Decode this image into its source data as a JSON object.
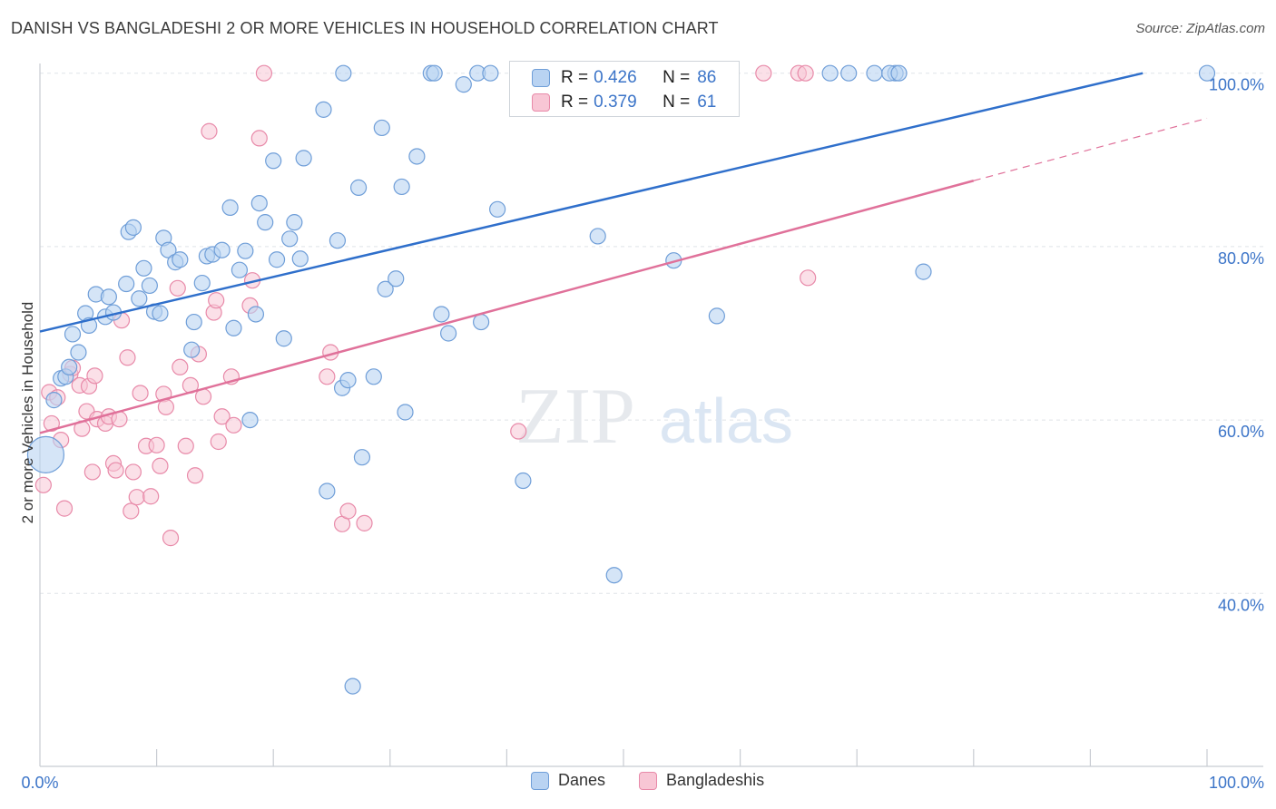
{
  "title": "DANISH VS BANGLADESHI 2 OR MORE VEHICLES IN HOUSEHOLD CORRELATION CHART",
  "source": "Source: ZipAtlas.com",
  "watermark": {
    "zip": "ZIP",
    "atlas": "atlas"
  },
  "legend_box": {
    "rows": [
      {
        "r_label": "R =",
        "r_value": "0.426",
        "n_label": "N =",
        "n_value": "86"
      },
      {
        "r_label": "R =",
        "r_value": "0.379",
        "n_label": "N =",
        "n_value": "61"
      }
    ]
  },
  "legend_bottom": {
    "danes": "Danes",
    "bangladeshis": "Bangladeshis"
  },
  "colors": {
    "danes_fill": "#b9d3f2",
    "danes_stroke": "#6f9ed8",
    "danes_line": "#2f6fcb",
    "bang_fill": "#f8c6d5",
    "bang_stroke": "#e88aa9",
    "bang_line": "#e0719a",
    "grid": "#dfe3e8",
    "tick_label": "#3b74c8"
  },
  "chart_data": {
    "type": "scatter",
    "title": "DANISH VS BANGLADESHI 2 OR MORE VEHICLES IN HOUSEHOLD CORRELATION CHART",
    "xlabel": "",
    "ylabel": "2 or more Vehicles in Household",
    "xlim": [
      0,
      100
    ],
    "ylim": [
      20,
      102
    ],
    "x_tick_labels": [
      "0.0%",
      "100.0%"
    ],
    "y_ticks": [
      40,
      60,
      80,
      100
    ],
    "y_tick_labels": [
      "40.0%",
      "60.0%",
      "80.0%",
      "100.0%"
    ],
    "grid": true,
    "legend_position": "top-center",
    "series": [
      {
        "name": "Danes",
        "r": 0.426,
        "n": 86,
        "trend": {
          "x0": 0,
          "y0": 70.2,
          "x1": 94.5,
          "y1": 100
        },
        "points": [
          [
            0.5,
            56
          ],
          [
            1.2,
            62.3
          ],
          [
            1.8,
            64.8
          ],
          [
            2.2,
            65
          ],
          [
            2.5,
            66.1
          ],
          [
            2.8,
            69.9
          ],
          [
            3.3,
            67.8
          ],
          [
            3.9,
            72.3
          ],
          [
            4.2,
            70.9
          ],
          [
            4.8,
            74.5
          ],
          [
            5.6,
            71.9
          ],
          [
            5.9,
            74.2
          ],
          [
            6.3,
            72.4
          ],
          [
            7.4,
            75.7
          ],
          [
            7.6,
            81.7
          ],
          [
            8.0,
            82.2
          ],
          [
            8.5,
            74
          ],
          [
            8.9,
            77.5
          ],
          [
            9.4,
            75.5
          ],
          [
            9.8,
            72.5
          ],
          [
            10.3,
            72.3
          ],
          [
            10.6,
            81
          ],
          [
            11.0,
            79.6
          ],
          [
            11.6,
            78.2
          ],
          [
            12.0,
            78.5
          ],
          [
            13.0,
            68.1
          ],
          [
            13.2,
            71.3
          ],
          [
            13.9,
            75.8
          ],
          [
            14.3,
            78.9
          ],
          [
            14.8,
            79.1
          ],
          [
            15.6,
            79.6
          ],
          [
            16.3,
            84.5
          ],
          [
            16.6,
            70.6
          ],
          [
            17.1,
            77.3
          ],
          [
            17.6,
            79.5
          ],
          [
            18.0,
            60
          ],
          [
            18.5,
            72.2
          ],
          [
            18.8,
            85
          ],
          [
            19.3,
            82.8
          ],
          [
            20.0,
            89.9
          ],
          [
            20.3,
            78.5
          ],
          [
            20.9,
            69.4
          ],
          [
            21.4,
            80.9
          ],
          [
            21.8,
            82.8
          ],
          [
            22.3,
            78.6
          ],
          [
            22.6,
            90.2
          ],
          [
            24.3,
            95.8
          ],
          [
            24.6,
            51.8
          ],
          [
            25.5,
            80.7
          ],
          [
            25.9,
            63.7
          ],
          [
            26.0,
            100
          ],
          [
            26.4,
            64.6
          ],
          [
            26.8,
            29.3
          ],
          [
            27.3,
            86.8
          ],
          [
            27.6,
            55.7
          ],
          [
            28.6,
            65
          ],
          [
            29.3,
            93.7
          ],
          [
            29.6,
            75.1
          ],
          [
            30.5,
            76.3
          ],
          [
            31.0,
            86.9
          ],
          [
            31.3,
            60.9
          ],
          [
            32.3,
            90.4
          ],
          [
            33.5,
            100
          ],
          [
            33.8,
            100
          ],
          [
            34.4,
            72.2
          ],
          [
            35.0,
            70
          ],
          [
            36.3,
            98.7
          ],
          [
            37.5,
            100
          ],
          [
            37.8,
            71.3
          ],
          [
            38.6,
            100
          ],
          [
            39.2,
            84.3
          ],
          [
            41.4,
            53
          ],
          [
            46.0,
            100
          ],
          [
            47.8,
            81.2
          ],
          [
            49.2,
            42.1
          ],
          [
            52.0,
            100
          ],
          [
            54.0,
            100
          ],
          [
            54.3,
            78.4
          ],
          [
            58.0,
            72
          ],
          [
            67.7,
            100
          ],
          [
            69.3,
            100
          ],
          [
            71.5,
            100
          ],
          [
            73.3,
            100
          ],
          [
            72.8,
            100
          ],
          [
            73.6,
            100
          ],
          [
            75.7,
            77.1
          ],
          [
            100,
            100
          ]
        ]
      },
      {
        "name": "Bangladeshis",
        "r": 0.379,
        "n": 61,
        "trend": {
          "x0": 0,
          "y0": 58.5,
          "x1": 80,
          "y1": 87.6,
          "dash_to_x": 100,
          "dash_to_y": 94.8
        },
        "points": [
          [
            0.3,
            52.5
          ],
          [
            0.8,
            63.2
          ],
          [
            1.0,
            59.6
          ],
          [
            1.5,
            62.6
          ],
          [
            1.8,
            57.7
          ],
          [
            2.1,
            49.8
          ],
          [
            2.6,
            65.3
          ],
          [
            2.8,
            66
          ],
          [
            3.4,
            64
          ],
          [
            3.6,
            59
          ],
          [
            4.0,
            61
          ],
          [
            4.2,
            63.9
          ],
          [
            4.5,
            54
          ],
          [
            4.7,
            65.1
          ],
          [
            4.9,
            60.1
          ],
          [
            5.6,
            59.6
          ],
          [
            5.9,
            60.4
          ],
          [
            6.3,
            55
          ],
          [
            6.5,
            54.2
          ],
          [
            6.8,
            60.1
          ],
          [
            7.0,
            71.5
          ],
          [
            7.5,
            67.2
          ],
          [
            7.8,
            49.5
          ],
          [
            8.0,
            54
          ],
          [
            8.3,
            51.1
          ],
          [
            8.6,
            63.1
          ],
          [
            9.1,
            57
          ],
          [
            9.5,
            51.2
          ],
          [
            10.0,
            57.1
          ],
          [
            10.3,
            54.7
          ],
          [
            10.6,
            63
          ],
          [
            10.8,
            61.5
          ],
          [
            11.2,
            46.4
          ],
          [
            11.8,
            75.2
          ],
          [
            12.0,
            66.1
          ],
          [
            12.5,
            57
          ],
          [
            12.9,
            64
          ],
          [
            13.3,
            53.6
          ],
          [
            13.6,
            67.6
          ],
          [
            14.0,
            62.7
          ],
          [
            14.5,
            93.3
          ],
          [
            14.9,
            72.4
          ],
          [
            15.1,
            73.8
          ],
          [
            15.3,
            57.5
          ],
          [
            15.6,
            60.4
          ],
          [
            16.4,
            65
          ],
          [
            16.6,
            59.4
          ],
          [
            18.0,
            73.2
          ],
          [
            18.2,
            76.1
          ],
          [
            18.8,
            92.5
          ],
          [
            19.2,
            100
          ],
          [
            24.6,
            65
          ],
          [
            24.9,
            67.8
          ],
          [
            25.9,
            48
          ],
          [
            26.4,
            49.5
          ],
          [
            27.8,
            48.1
          ],
          [
            41.0,
            58.7
          ],
          [
            65.0,
            100
          ],
          [
            65.6,
            100
          ],
          [
            62.0,
            100
          ],
          [
            65.8,
            76.4
          ]
        ]
      }
    ]
  }
}
